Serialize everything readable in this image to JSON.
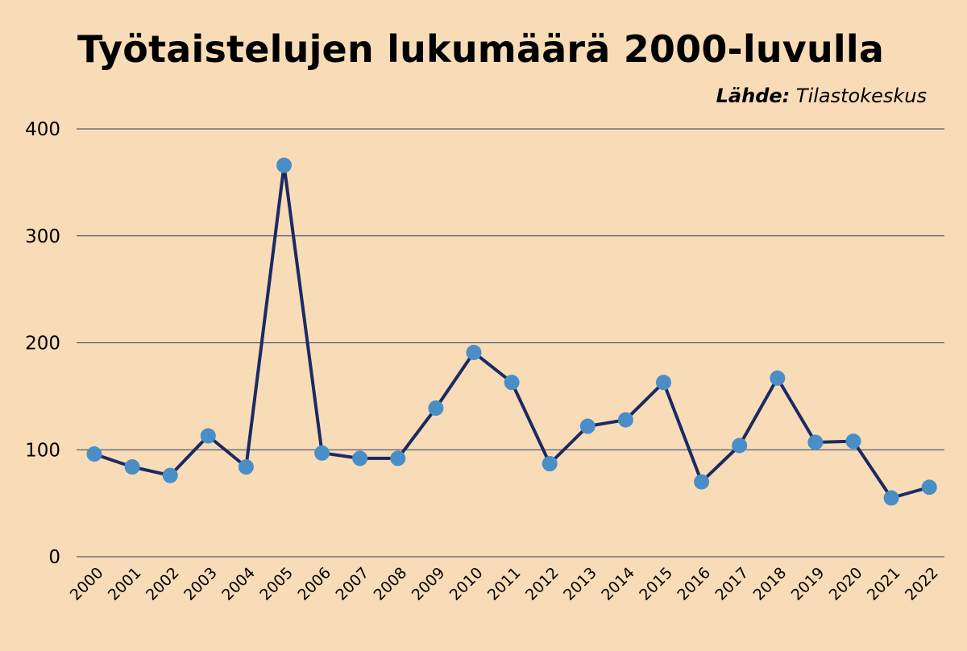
{
  "title": "Työtaistelujen lukumäärä 2000-luvulla",
  "source": {
    "label": "Lähde:",
    "text": "Tilastokeskus"
  },
  "colors": {
    "background": "#f8dcb7",
    "line": "#1b2a63",
    "marker": "#4a8ec7",
    "grid": "#2a3a5e",
    "text": "#000000"
  },
  "chart_data": {
    "type": "line",
    "title": "Työtaistelujen lukumäärä 2000-luvulla",
    "xlabel": "",
    "ylabel": "",
    "categories": [
      "2000",
      "2001",
      "2002",
      "2003",
      "2004",
      "2005",
      "2006",
      "2007",
      "2008",
      "2009",
      "2010",
      "2011",
      "2012",
      "2013",
      "2014",
      "2015",
      "2016",
      "2017",
      "2018",
      "2019",
      "2020",
      "2021",
      "2022"
    ],
    "values": [
      96,
      84,
      76,
      113,
      84,
      366,
      97,
      92,
      92,
      139,
      191,
      163,
      87,
      122,
      128,
      163,
      70,
      104,
      167,
      107,
      108,
      55,
      65
    ],
    "ylim": [
      0,
      400
    ],
    "yticks": [
      0,
      100,
      200,
      300,
      400
    ],
    "grid": "horizontal",
    "legend": "none",
    "markers": true
  }
}
